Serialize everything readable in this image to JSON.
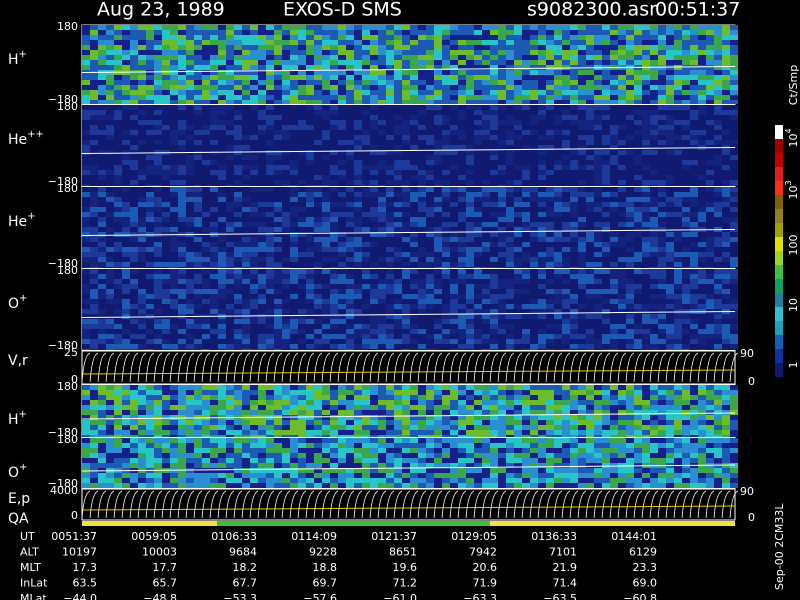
{
  "header": {
    "date": "Aug 23, 1989",
    "instrument": "EXOS-D SMS",
    "file": "s9082300.asr",
    "time": "00:51:37"
  },
  "panels": [
    {
      "label": {
        "base": "H",
        "sup": "+"
      },
      "ymax": "180",
      "ymin": "−180"
    },
    {
      "label": {
        "base": "He",
        "sup": "++"
      },
      "ymax": "180",
      "ymin": "−180"
    },
    {
      "label": {
        "base": "He",
        "sup": "+"
      },
      "ymax": "180",
      "ymin": "−180"
    },
    {
      "label": {
        "base": "O",
        "sup": "+"
      },
      "ymax": "180",
      "ymin": "−180"
    },
    {
      "label": {
        "base": "V,r",
        "sup": ""
      },
      "ymax": "25",
      "ymin": "0",
      "y2max": "90",
      "y2min": "0"
    },
    {
      "label": {
        "base": "H",
        "sup": "+"
      },
      "ymax": "180",
      "ymin": "−180"
    },
    {
      "label": {
        "base": "O",
        "sup": "+"
      },
      "ymax": "180",
      "ymin": "−180"
    },
    {
      "label": {
        "base": "E,p",
        "sup": ""
      },
      "ymax": "4000",
      "ymin": "0",
      "y2max": "90",
      "y2min": "0"
    }
  ],
  "qa_label": "QA",
  "colorbar": {
    "title": "Ct/Smp",
    "labels": [
      {
        "base": "10",
        "sup": "4"
      },
      {
        "base": "10",
        "sup": "3"
      },
      {
        "base": "100",
        "sup": ""
      },
      {
        "base": "10",
        "sup": ""
      },
      {
        "base": "1",
        "sup": ""
      }
    ]
  },
  "table": [
    {
      "label": "UT",
      "values": [
        "0051:37",
        "0059:05",
        "0106:33",
        "0114:09",
        "0121:37",
        "0129:05",
        "0136:33",
        "0144:01"
      ]
    },
    {
      "label": "ALT",
      "values": [
        "10197",
        "10003",
        "9684",
        "9228",
        "8651",
        "7942",
        "7101",
        "6129"
      ]
    },
    {
      "label": "MLT",
      "values": [
        "17.3",
        "17.7",
        "18.2",
        "18.8",
        "19.6",
        "20.6",
        "21.9",
        "23.3"
      ]
    },
    {
      "label": "InLat",
      "values": [
        "63.5",
        "65.7",
        "67.7",
        "69.7",
        "71.2",
        "71.9",
        "71.4",
        "69.0"
      ]
    },
    {
      "label": "MLat",
      "values": [
        "−44.0",
        "−48.8",
        "−53.3",
        "−57.6",
        "−61.0",
        "−63.3",
        "−63.5",
        "−60.8"
      ]
    }
  ],
  "footer": "Sep-00 2CM33L"
}
